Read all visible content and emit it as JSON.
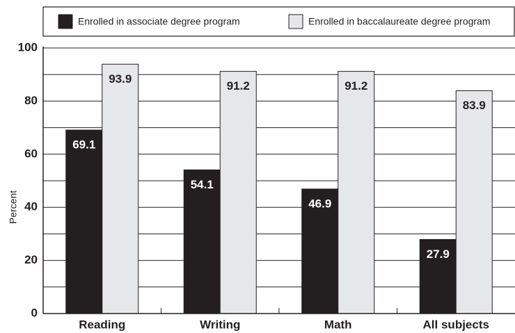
{
  "chart_data": {
    "type": "bar",
    "y_label": "Percent",
    "categories": [
      "Reading",
      "Writing",
      "Math",
      "All subjects"
    ],
    "series": [
      {
        "name": "Enrolled in associate degree program",
        "color": "#231f20",
        "label_color": "#ffffff",
        "values": [
          69.1,
          54.1,
          46.9,
          27.9
        ]
      },
      {
        "name": "Enrolled in baccalaureate degree program",
        "color": "#e6e7e8",
        "label_color": "#231f20",
        "values": [
          93.9,
          91.2,
          91.2,
          83.9
        ]
      }
    ],
    "ylim": [
      0,
      100
    ],
    "yticks": [
      0,
      20,
      40,
      60,
      80,
      100
    ],
    "minor_yticks": [
      10,
      30,
      50,
      70,
      90
    ],
    "grid": true,
    "legend": "top"
  }
}
